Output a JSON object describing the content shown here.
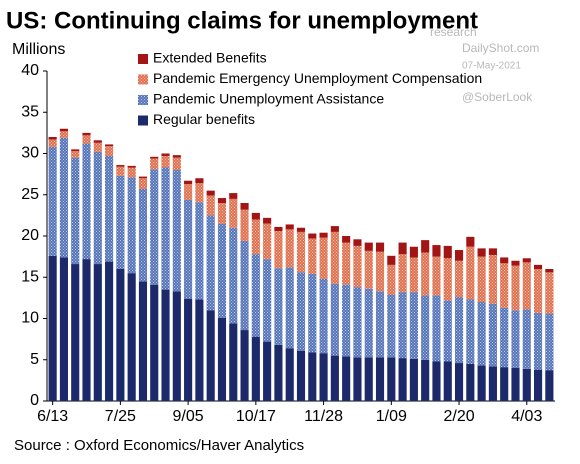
{
  "chart_data": {
    "type": "stacked_bar",
    "title": "US: Continuing claims for unemployment",
    "y_label": "Millions",
    "source": "Source : Oxford Economics/Haver Analytics",
    "watermark": [
      "research",
      "DailyShot.com",
      "07-May-2021",
      "@SoberLook"
    ],
    "legend": "top-left",
    "categories": [
      "6/13",
      null,
      null,
      null,
      null,
      null,
      "7/25",
      null,
      null,
      null,
      null,
      null,
      "9/05",
      null,
      null,
      null,
      null,
      null,
      "10/17",
      null,
      null,
      null,
      null,
      null,
      "11/28",
      null,
      null,
      null,
      null,
      null,
      "1/09",
      null,
      null,
      null,
      null,
      null,
      "2/20",
      null,
      null,
      null,
      null,
      null,
      "4/03",
      null,
      null
    ],
    "series": [
      {
        "name": "Extended Benefits",
        "color": "#a31515",
        "pattern": "solid",
        "values": [
          0.3,
          0.3,
          0.2,
          0.3,
          0.3,
          0.2,
          0.2,
          0.2,
          0.2,
          0.2,
          0.3,
          0.3,
          0.4,
          0.6,
          0.6,
          0.6,
          0.7,
          0.8,
          0.8,
          0.7,
          0.5,
          0.6,
          0.5,
          0.6,
          0.6,
          0.7,
          0.8,
          0.8,
          1.0,
          1.1,
          1.1,
          1.4,
          1.3,
          1.5,
          1.4,
          1.5,
          1.3,
          1.2,
          1.0,
          0.8,
          0.7,
          0.6,
          0.5,
          0.5,
          0.4
        ]
      },
      {
        "name": "Pandemic Emergency Unemployment Compensation",
        "color": "#e0714f",
        "pattern": "hatched",
        "values": [
          0.9,
          0.8,
          0.8,
          1.0,
          1.1,
          1.2,
          1.1,
          1.2,
          1.3,
          1.3,
          1.4,
          1.5,
          1.9,
          2.3,
          2.4,
          2.5,
          3.5,
          3.8,
          4.2,
          4.3,
          4.5,
          4.6,
          4.9,
          4.3,
          5.0,
          6.3,
          5.1,
          5.0,
          4.6,
          4.8,
          3.6,
          4.6,
          4.2,
          5.2,
          4.7,
          5.1,
          4.4,
          6.4,
          5.5,
          5.9,
          5.4,
          5.4,
          5.7,
          5.3,
          5.0
        ]
      },
      {
        "name": "Pandemic Unemployment Assistance",
        "color": "#5674b8",
        "pattern": "hatched",
        "values": [
          13.2,
          14.5,
          12.9,
          14.0,
          13.6,
          12.8,
          11.3,
          11.6,
          11.2,
          14.0,
          14.8,
          14.7,
          12.0,
          11.8,
          11.5,
          11.4,
          11.6,
          10.8,
          10.0,
          10.0,
          9.3,
          9.8,
          9.5,
          9.5,
          9.0,
          8.7,
          8.7,
          8.5,
          8.3,
          8.0,
          7.6,
          8.0,
          8.1,
          7.8,
          8.0,
          7.4,
          8.0,
          7.8,
          7.7,
          7.6,
          7.2,
          7.0,
          7.2,
          6.9,
          6.9
        ]
      },
      {
        "name": "Regular benefits",
        "color": "#1c2a6b",
        "pattern": "solid",
        "values": [
          17.6,
          17.4,
          16.6,
          17.2,
          16.6,
          16.9,
          16.0,
          15.5,
          14.5,
          14.1,
          13.5,
          13.3,
          12.4,
          12.3,
          11.0,
          10.1,
          9.4,
          8.6,
          7.8,
          7.2,
          6.8,
          6.4,
          6.1,
          5.9,
          5.8,
          5.5,
          5.4,
          5.3,
          5.3,
          5.3,
          5.3,
          5.2,
          5.1,
          5.0,
          4.8,
          4.8,
          4.6,
          4.5,
          4.3,
          4.2,
          4.1,
          4.0,
          3.9,
          3.8,
          3.7
        ]
      }
    ],
    "ylim": [
      0,
      40
    ],
    "yticks": [
      0,
      5,
      10,
      15,
      20,
      25,
      30,
      35,
      40
    ],
    "grid": false
  }
}
